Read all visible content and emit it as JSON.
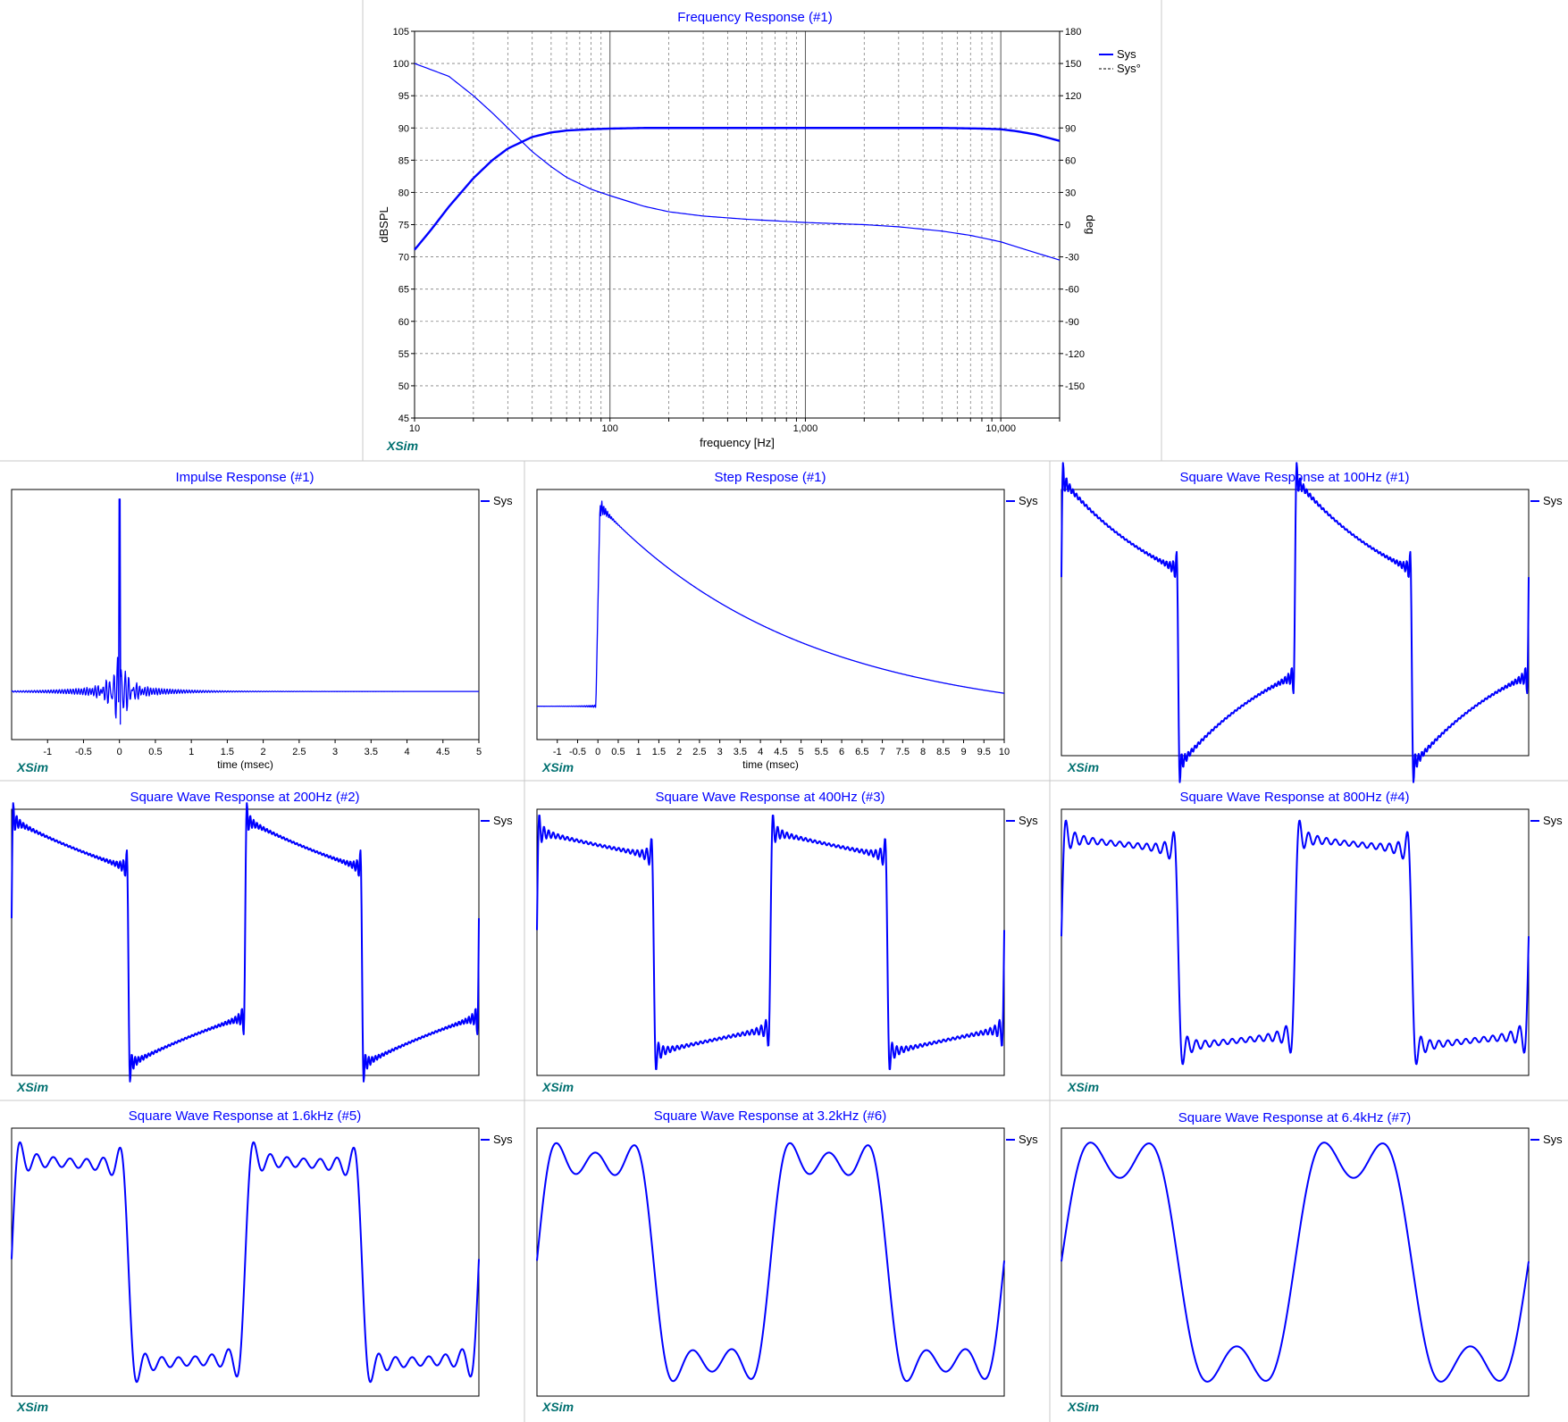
{
  "app": {
    "brand_label": "XSim"
  },
  "colors": {
    "trace": "#0000ff",
    "title": "#0000ff",
    "brand": "#007070",
    "grid": "#808080",
    "frame": "#000000",
    "divider": "#c8c8c8"
  },
  "chart_data": [
    {
      "id": "freq",
      "type": "line",
      "title": "Frequency Response (#1)",
      "xlabel": "frequency [Hz]",
      "ylabel": "dBSPL",
      "y2label": "deg",
      "xscale": "log",
      "xlim": [
        10,
        20000
      ],
      "ylim": [
        45,
        105
      ],
      "y2lim": [
        -180,
        180
      ],
      "x_ticks": [
        10,
        100,
        1000,
        10000
      ],
      "x_tick_labels": [
        "10",
        "100",
        "1,000",
        "10,000"
      ],
      "y_ticks": [
        45,
        50,
        55,
        60,
        65,
        70,
        75,
        80,
        85,
        90,
        95,
        100,
        105
      ],
      "y2_ticks": [
        -150,
        -120,
        -90,
        -60,
        -30,
        0,
        30,
        60,
        90,
        120,
        150,
        180
      ],
      "grid": true,
      "legend_position": "top-right",
      "series": [
        {
          "name": "Sys",
          "axis": "left",
          "style": "solid",
          "x": [
            10,
            12,
            15,
            20,
            25,
            30,
            40,
            50,
            60,
            80,
            100,
            150,
            200,
            500,
            1000,
            2000,
            5000,
            8000,
            10000,
            12000,
            15000,
            20000
          ],
          "y": [
            71.1,
            74.0,
            77.8,
            82.2,
            85.0,
            86.8,
            88.6,
            89.3,
            89.6,
            89.8,
            89.9,
            90.0,
            90.0,
            90.0,
            90.0,
            90.0,
            90.0,
            89.9,
            89.8,
            89.5,
            89.0,
            88.0
          ]
        },
        {
          "name": "Sys°",
          "axis": "right",
          "style": "dashed",
          "x": [
            10,
            15,
            20,
            25,
            30,
            40,
            50,
            60,
            80,
            100,
            150,
            200,
            300,
            500,
            1000,
            2000,
            3000,
            5000,
            7000,
            10000,
            15000,
            20000
          ],
          "y": [
            150,
            138,
            120,
            104,
            90,
            68,
            54,
            44,
            33,
            27,
            17,
            12,
            8,
            5,
            2,
            0,
            -2,
            -6,
            -10,
            -16,
            -26,
            -33
          ]
        }
      ]
    },
    {
      "id": "impulse",
      "type": "line",
      "title": "Impulse Response (#1)",
      "xlabel": "time (msec)",
      "xlim": [
        -1.5,
        5
      ],
      "ylim": [
        -0.25,
        1.05
      ],
      "x_ticks": [
        -1,
        -0.5,
        0,
        0.5,
        1,
        1.5,
        2,
        2.5,
        3,
        3.5,
        4,
        4.5,
        5
      ],
      "x_tick_labels": [
        "-1",
        "-0.5",
        "0",
        "0.5",
        "1",
        "1.5",
        "2",
        "2.5",
        "3",
        "3.5",
        "4",
        "4.5",
        "5"
      ],
      "legend_position": "top-right",
      "series": [
        {
          "name": "Sys",
          "model": "impulse",
          "peak_time_ms": 0.0,
          "peak": 1.0
        }
      ]
    },
    {
      "id": "step",
      "type": "line",
      "title": "Step Respose (#1)",
      "xlabel": "time (msec)",
      "xlim": [
        -1.5,
        10
      ],
      "ylim": [
        -0.1,
        0.65
      ],
      "x_ticks": [
        -1,
        -0.5,
        0,
        0.5,
        1,
        1.5,
        2,
        2.5,
        3,
        3.5,
        4,
        4.5,
        5,
        5.5,
        6,
        6.5,
        7,
        7.5,
        8,
        8.5,
        9,
        9.5,
        10
      ],
      "x_tick_labels": [
        "-1",
        "-0.5",
        "0",
        "0.5",
        "1",
        "1.5",
        "2",
        "2.5",
        "3",
        "3.5",
        "4",
        "4.5",
        "5",
        "5.5",
        "6",
        "6.5",
        "7",
        "7.5",
        "8",
        "8.5",
        "9",
        "9.5",
        "10"
      ],
      "legend_position": "top-right",
      "series": [
        {
          "name": "Sys",
          "model": "step",
          "peak": 0.6,
          "decay_ms": 5.0,
          "end_value": -0.05
        }
      ]
    },
    {
      "id": "sq100",
      "type": "line",
      "title": "Square Wave Response at 100Hz (#1)",
      "legend_position": "top-right",
      "ylim": [
        -1.35,
        1.35
      ],
      "series": [
        {
          "name": "Sys",
          "model": "square",
          "fund_hz": 100,
          "cycles": 2,
          "harmonics": 35,
          "low_cut_hz": 32
        }
      ]
    },
    {
      "id": "sq200",
      "type": "line",
      "title": "Square Wave Response at 200Hz (#2)",
      "legend_position": "top-right",
      "ylim": [
        -1.35,
        1.35
      ],
      "series": [
        {
          "name": "Sys",
          "model": "square",
          "fund_hz": 200,
          "cycles": 2,
          "harmonics": 35,
          "low_cut_hz": 32
        }
      ]
    },
    {
      "id": "sq400",
      "type": "line",
      "title": "Square Wave Response at 400Hz (#3)",
      "legend_position": "top-right",
      "ylim": [
        -1.35,
        1.35
      ],
      "series": [
        {
          "name": "Sys",
          "model": "square",
          "fund_hz": 400,
          "cycles": 2,
          "harmonics": 25,
          "low_cut_hz": 32
        }
      ]
    },
    {
      "id": "sq800",
      "type": "line",
      "title": "Square Wave Response at 800Hz (#4)",
      "legend_position": "top-right",
      "ylim": [
        -1.35,
        1.35
      ],
      "series": [
        {
          "name": "Sys",
          "model": "square",
          "fund_hz": 800,
          "cycles": 2,
          "harmonics": 13,
          "low_cut_hz": 32
        }
      ]
    },
    {
      "id": "sq1600",
      "type": "line",
      "title": "Square Wave Response at 1.6kHz (#5)",
      "legend_position": "top-right",
      "ylim": [
        -1.35,
        1.35
      ],
      "series": [
        {
          "name": "Sys",
          "model": "square",
          "fund_hz": 1600,
          "cycles": 2,
          "harmonics": 7,
          "low_cut_hz": 32
        }
      ]
    },
    {
      "id": "sq3200",
      "type": "line",
      "title": "Square Wave Response at 3.2kHz (#6)",
      "legend_position": "top-right",
      "ylim": [
        -1.35,
        1.35
      ],
      "series": [
        {
          "name": "Sys",
          "model": "square",
          "fund_hz": 3200,
          "cycles": 2,
          "harmonics": 3,
          "low_cut_hz": 32
        }
      ]
    },
    {
      "id": "sq6400",
      "type": "line",
      "title": "Square Wave Response at 6.4kHz (#7)",
      "legend_position": "top-right",
      "ylim": [
        -1.35,
        1.35
      ],
      "series": [
        {
          "name": "Sys",
          "model": "square",
          "fund_hz": 6400,
          "cycles": 2,
          "harmonics": 2,
          "low_cut_hz": 32
        }
      ]
    }
  ]
}
